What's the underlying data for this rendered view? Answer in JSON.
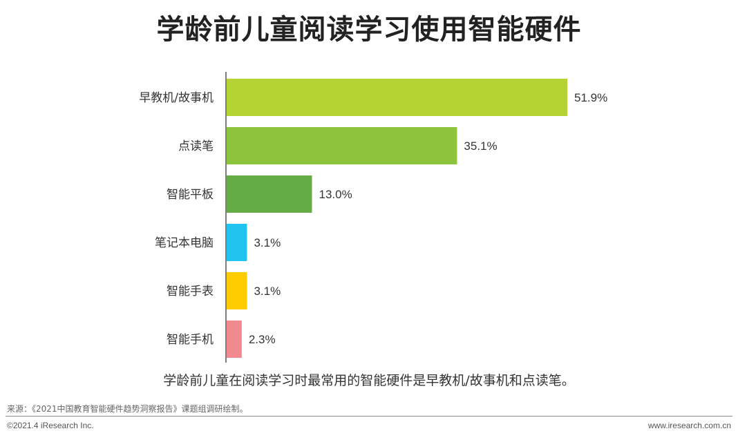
{
  "header": {
    "title": "学龄前儿童阅读学习使用智能硬件"
  },
  "chart_data": {
    "type": "bar",
    "orientation": "horizontal",
    "title": "学龄前儿童阅读学习使用智能硬件",
    "categories": [
      "早教机/故事机",
      "点读笔",
      "智能平板",
      "笔记本电脑",
      "智能手表",
      "智能手机"
    ],
    "values": [
      51.9,
      35.1,
      13.0,
      3.1,
      3.1,
      2.3
    ],
    "value_labels": [
      "51.9%",
      "35.1%",
      "13.0%",
      "3.1%",
      "3.1%",
      "2.3%"
    ],
    "colors": [
      "#b5d334",
      "#8cc43c",
      "#66ac46",
      "#21c4ef",
      "#ffcc00",
      "#f08a8f"
    ],
    "xlim": [
      0,
      60
    ],
    "grid": false,
    "legend": "none"
  },
  "footer": {
    "note": "学龄前儿童在阅读学习时最常用的智能硬件是早教机/故事机和点读笔。",
    "source": "来源：《2021中国教育智能硬件趋势洞察报告》课题组调研绘制。",
    "copyright": "©2021.4 iResearch Inc.",
    "website": "www.iresearch.com.cn"
  }
}
